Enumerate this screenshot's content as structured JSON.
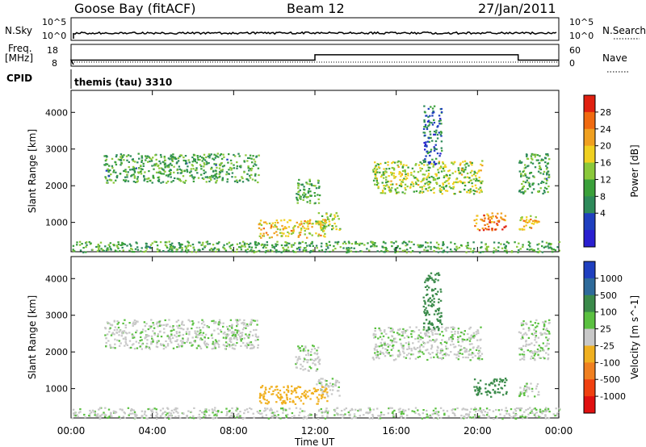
{
  "header": {
    "station": "Goose Bay (fitACF)",
    "beam": "Beam 12",
    "date": "27/Jan/2011"
  },
  "noise_panel": {
    "left_label": "N.Sky",
    "right_label": "N.Search",
    "left_ticks": [
      "10^5",
      "10^0"
    ],
    "right_ticks": [
      "10^5",
      "10^0"
    ]
  },
  "freq_panel": {
    "left_label_line1": "Freq.",
    "left_label_line2": "[MHz]",
    "left_ticks": [
      "18",
      "8"
    ],
    "right_label": "Nave",
    "right_ticks": [
      "60",
      "0"
    ],
    "freq_steps": [
      {
        "from_hour": 0,
        "to_hour": 12,
        "mhz": 10.5
      },
      {
        "from_hour": 12,
        "to_hour": 22,
        "mhz": 13.5
      },
      {
        "from_hour": 22,
        "to_hour": 24,
        "mhz": 10.5
      }
    ]
  },
  "cpid": {
    "label": "CPID",
    "program": "themis (tau) 3310"
  },
  "chart_data": [
    {
      "type": "heatmap",
      "ylabel": "Slant Range [km]",
      "yticks": [
        "1000",
        "2000",
        "3000",
        "4000"
      ],
      "ylim": [
        200,
        4600
      ],
      "xlim": [
        0,
        24
      ],
      "colorbar_label": "Power [dB]",
      "colorbar_ticks": [
        "4",
        "8",
        "12",
        "16",
        "20",
        "24",
        "28"
      ],
      "colorbar_colors": [
        "#2a1fd0",
        "#1f3fbf",
        "#2e8a5a",
        "#3aa03a",
        "#8ac83a",
        "#f0d020",
        "#f0a020",
        "#f06a10",
        "#e02010"
      ],
      "echo_regions": [
        {
          "t0": 1.6,
          "t1": 9.2,
          "r0": 2100,
          "r1": 2900,
          "level": 12
        },
        {
          "t0": 9.2,
          "t1": 12.6,
          "r0": 600,
          "r1": 1100,
          "level": 20
        },
        {
          "t0": 11.0,
          "t1": 12.2,
          "r0": 1500,
          "r1": 2200,
          "level": 12
        },
        {
          "t0": 12.0,
          "t1": 13.2,
          "r0": 800,
          "r1": 1300,
          "level": 16
        },
        {
          "t0": 14.8,
          "t1": 20.2,
          "r0": 1800,
          "r1": 2700,
          "level": 16
        },
        {
          "t0": 17.3,
          "t1": 18.2,
          "r0": 2600,
          "r1": 4200,
          "level": 8
        },
        {
          "t0": 19.8,
          "t1": 21.4,
          "r0": 800,
          "r1": 1300,
          "level": 24
        },
        {
          "t0": 22.0,
          "t1": 23.5,
          "r0": 1800,
          "r1": 2900,
          "level": 12
        },
        {
          "t0": 22.0,
          "t1": 23.0,
          "r0": 800,
          "r1": 1200,
          "level": 20
        },
        {
          "t0": 0.0,
          "t1": 24.0,
          "r0": 200,
          "r1": 500,
          "level": 12
        }
      ]
    },
    {
      "type": "heatmap",
      "ylabel": "Slant Range [km]",
      "yticks": [
        "1000",
        "2000",
        "3000",
        "4000"
      ],
      "ylim": [
        200,
        4600
      ],
      "xlim": [
        0,
        24
      ],
      "colorbar_label": "Velocity [m s^-1]",
      "colorbar_ticks": [
        "1000",
        "500",
        "100",
        "25",
        "-25",
        "-100",
        "-500",
        "-1000"
      ],
      "colorbar_colors": [
        "#1f3fbf",
        "#2e6a9a",
        "#3a8a4a",
        "#5ac040",
        "#c8c8c8",
        "#f0b020",
        "#f08020",
        "#f04010",
        "#e01010"
      ],
      "echo_regions": [
        {
          "t0": 1.6,
          "t1": 9.2,
          "r0": 2100,
          "r1": 2900,
          "level": 0
        },
        {
          "t0": 9.2,
          "t1": 12.6,
          "r0": 600,
          "r1": 1100,
          "level": -100
        },
        {
          "t0": 11.0,
          "t1": 12.2,
          "r0": 1500,
          "r1": 2200,
          "level": 0
        },
        {
          "t0": 12.0,
          "t1": 13.2,
          "r0": 800,
          "r1": 1300,
          "level": 0
        },
        {
          "t0": 14.8,
          "t1": 20.2,
          "r0": 1800,
          "r1": 2700,
          "level": 0
        },
        {
          "t0": 17.3,
          "t1": 18.2,
          "r0": 2600,
          "r1": 4200,
          "level": 100
        },
        {
          "t0": 19.8,
          "t1": 21.4,
          "r0": 800,
          "r1": 1300,
          "level": 100
        },
        {
          "t0": 22.0,
          "t1": 23.5,
          "r0": 1800,
          "r1": 2900,
          "level": 0
        },
        {
          "t0": 22.0,
          "t1": 23.0,
          "r0": 800,
          "r1": 1200,
          "level": 0
        },
        {
          "t0": 0.0,
          "t1": 24.0,
          "r0": 200,
          "r1": 500,
          "level": 0
        }
      ]
    }
  ],
  "xaxis": {
    "label": "Time UT",
    "ticks": [
      "00:00",
      "04:00",
      "08:00",
      "12:00",
      "16:00",
      "20:00",
      "00:00"
    ]
  }
}
